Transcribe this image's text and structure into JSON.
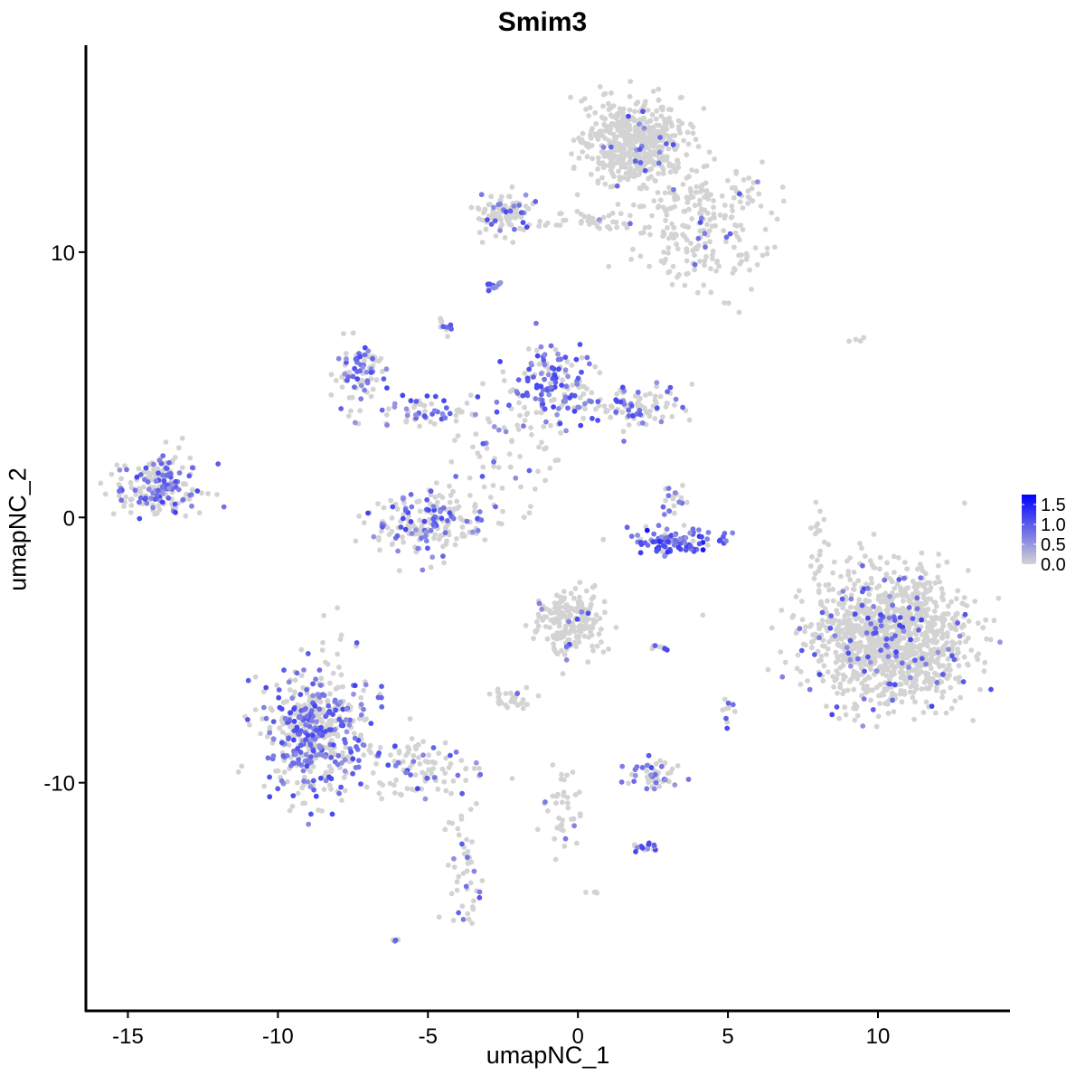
{
  "chart_data": {
    "type": "scatter",
    "title": "Smim3",
    "xlabel": "umapNC_1",
    "ylabel": "umapNC_2",
    "xlim": [
      -16.4,
      14.4
    ],
    "ylim": [
      -18.6,
      17.8
    ],
    "xticks": [
      -15,
      -10,
      -5,
      0,
      5,
      10
    ],
    "yticks": [
      -10,
      0,
      10
    ],
    "grid": false,
    "legend": {
      "position": "right",
      "type": "colorbar",
      "ticks": [
        0.0,
        0.5,
        1.0,
        1.5
      ],
      "tick_labels": [
        "0.0",
        "0.5",
        "1.0",
        "1.5"
      ],
      "range": [
        0,
        1.75
      ],
      "low_color": "#D3D3D3",
      "high_color": "#0000FF"
    },
    "clusters": [
      {
        "x": 1.8,
        "y": 14.2,
        "sd_x": 0.8,
        "sd_y": 0.8,
        "n": 500,
        "expressing_fraction": 0.03
      },
      {
        "x": 4.0,
        "y": 11.0,
        "sd_x": 1.2,
        "sd_y": 1.3,
        "n": 250,
        "expressing_fraction": 0.05
      },
      {
        "x": -2.5,
        "y": 11.5,
        "sd_x": 0.5,
        "sd_y": 0.4,
        "n": 100,
        "expressing_fraction": 0.15
      },
      {
        "x": 0.3,
        "y": 11.2,
        "sd_x": 0.8,
        "sd_y": 0.15,
        "n": 40,
        "expressing_fraction": 0.05
      },
      {
        "x": -2.8,
        "y": 8.7,
        "sd_x": 0.15,
        "sd_y": 0.1,
        "n": 15,
        "expressing_fraction": 0.7
      },
      {
        "x": -4.5,
        "y": 7.3,
        "sd_x": 0.15,
        "sd_y": 0.2,
        "n": 10,
        "expressing_fraction": 0.5
      },
      {
        "x": -7.2,
        "y": 5.3,
        "sd_x": 0.5,
        "sd_y": 0.6,
        "n": 80,
        "expressing_fraction": 0.5
      },
      {
        "x": -5.0,
        "y": 4.0,
        "sd_x": 1.0,
        "sd_y": 0.3,
        "n": 60,
        "expressing_fraction": 0.5
      },
      {
        "x": -1.0,
        "y": 4.8,
        "sd_x": 0.7,
        "sd_y": 0.9,
        "n": 150,
        "expressing_fraction": 0.55
      },
      {
        "x": 1.8,
        "y": 4.2,
        "sd_x": 0.8,
        "sd_y": 0.4,
        "n": 100,
        "expressing_fraction": 0.3
      },
      {
        "x": -14.0,
        "y": 1.2,
        "sd_x": 0.8,
        "sd_y": 0.6,
        "n": 200,
        "expressing_fraction": 0.35
      },
      {
        "x": -5.0,
        "y": -0.2,
        "sd_x": 0.9,
        "sd_y": 0.6,
        "n": 200,
        "expressing_fraction": 0.3
      },
      {
        "x": -2.5,
        "y": 2.5,
        "sd_x": 1.0,
        "sd_y": 1.2,
        "n": 60,
        "expressing_fraction": 0.1
      },
      {
        "x": 3.3,
        "y": -0.9,
        "sd_x": 0.8,
        "sd_y": 0.25,
        "n": 100,
        "expressing_fraction": 0.9
      },
      {
        "x": 3.2,
        "y": 0.8,
        "sd_x": 0.2,
        "sd_y": 0.4,
        "n": 20,
        "expressing_fraction": 0.4
      },
      {
        "x": 10.4,
        "y": -4.6,
        "sd_x": 1.3,
        "sd_y": 1.2,
        "n": 1200,
        "expressing_fraction": 0.08
      },
      {
        "x": -0.3,
        "y": -3.9,
        "sd_x": 0.6,
        "sd_y": 0.6,
        "n": 200,
        "expressing_fraction": 0.05
      },
      {
        "x": -8.8,
        "y": -8.0,
        "sd_x": 0.9,
        "sd_y": 1.2,
        "n": 500,
        "expressing_fraction": 0.45
      },
      {
        "x": -5.5,
        "y": -9.5,
        "sd_x": 1.0,
        "sd_y": 0.6,
        "n": 100,
        "expressing_fraction": 0.2
      },
      {
        "x": -3.7,
        "y": -13.0,
        "sd_x": 0.3,
        "sd_y": 1.2,
        "n": 50,
        "expressing_fraction": 0.15
      },
      {
        "x": -2.3,
        "y": -6.9,
        "sd_x": 0.4,
        "sd_y": 0.2,
        "n": 30,
        "expressing_fraction": 0.05
      },
      {
        "x": 2.4,
        "y": -9.7,
        "sd_x": 0.5,
        "sd_y": 0.3,
        "n": 50,
        "expressing_fraction": 0.35
      },
      {
        "x": -0.4,
        "y": -11.0,
        "sd_x": 0.3,
        "sd_y": 0.8,
        "n": 40,
        "expressing_fraction": 0.05
      },
      {
        "x": 2.2,
        "y": -12.4,
        "sd_x": 0.2,
        "sd_y": 0.1,
        "n": 15,
        "expressing_fraction": 0.5
      },
      {
        "x": -6.0,
        "y": -16.0,
        "sd_x": 0.1,
        "sd_y": 0.05,
        "n": 5,
        "expressing_fraction": 0.6
      },
      {
        "x": 8.0,
        "y": -1.0,
        "sd_x": 0.15,
        "sd_y": 1.0,
        "n": 20,
        "expressing_fraction": 0.0
      },
      {
        "x": 9.4,
        "y": 6.7,
        "sd_x": 0.2,
        "sd_y": 0.05,
        "n": 4,
        "expressing_fraction": 0.0
      },
      {
        "x": 5.0,
        "y": -7.3,
        "sd_x": 0.1,
        "sd_y": 0.3,
        "n": 10,
        "expressing_fraction": 0.3
      },
      {
        "x": 2.8,
        "y": -4.9,
        "sd_x": 0.2,
        "sd_y": 0.05,
        "n": 8,
        "expressing_fraction": 0.2
      },
      {
        "x": 0.5,
        "y": -14.1,
        "sd_x": 0.1,
        "sd_y": 0.05,
        "n": 4,
        "expressing_fraction": 0.0
      }
    ]
  }
}
